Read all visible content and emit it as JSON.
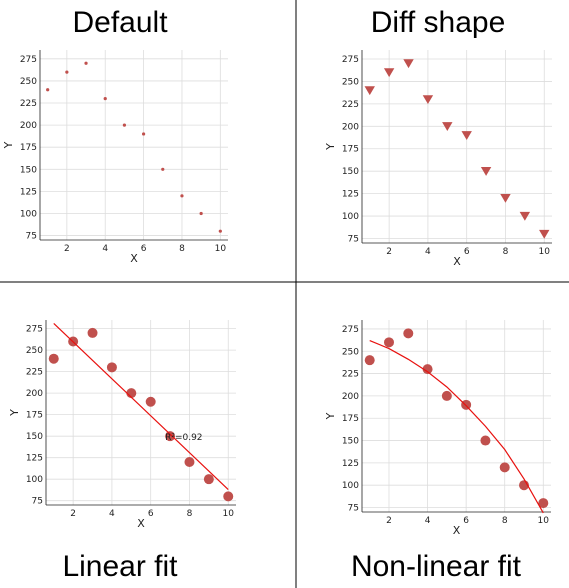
{
  "colors": {
    "marker": "#c0504d",
    "fit_line": "#e8110f",
    "grid": "#dddddd",
    "axis": "#222222",
    "divider": "#000000"
  },
  "chart_data": [
    {
      "id": "default",
      "type": "scatter",
      "title": "Default",
      "xlabel": "X",
      "ylabel": "Y",
      "marker": "small-circle",
      "grid": true,
      "xlim": [
        0.6,
        10.4
      ],
      "ylim": [
        70,
        285
      ],
      "xticks": [
        2,
        4,
        6,
        8,
        10
      ],
      "yticks": [
        75,
        100,
        125,
        150,
        175,
        200,
        225,
        250,
        275
      ],
      "x": [
        1,
        2,
        3,
        4,
        5,
        6,
        7,
        8,
        9,
        10
      ],
      "y": [
        240,
        260,
        270,
        230,
        200,
        190,
        150,
        120,
        100,
        80
      ]
    },
    {
      "id": "diff-shape",
      "type": "scatter",
      "title": "Diff shape",
      "xlabel": "X",
      "ylabel": "Y",
      "marker": "triangle-down",
      "grid": true,
      "xlim": [
        0.6,
        10.4
      ],
      "ylim": [
        70,
        285
      ],
      "xticks": [
        2,
        4,
        6,
        8,
        10
      ],
      "yticks": [
        75,
        100,
        125,
        150,
        175,
        200,
        225,
        250,
        275
      ],
      "x": [
        1,
        2,
        3,
        4,
        5,
        6,
        7,
        8,
        9,
        10
      ],
      "y": [
        240,
        260,
        270,
        230,
        200,
        190,
        150,
        120,
        100,
        80
      ]
    },
    {
      "id": "linear-fit",
      "type": "scatter",
      "title": "Linear fit",
      "xlabel": "X",
      "ylabel": "Y",
      "marker": "large-circle",
      "grid": true,
      "xlim": [
        0.6,
        10.4
      ],
      "ylim": [
        70,
        285
      ],
      "xticks": [
        2,
        4,
        6,
        8,
        10
      ],
      "yticks": [
        75,
        100,
        125,
        150,
        175,
        200,
        225,
        250,
        275
      ],
      "x": [
        1,
        2,
        3,
        4,
        5,
        6,
        7,
        8,
        9,
        10
      ],
      "y": [
        240,
        260,
        270,
        230,
        200,
        190,
        150,
        120,
        100,
        80
      ],
      "fit": {
        "kind": "linear",
        "x_range": [
          1,
          10
        ],
        "y_at_start": 281,
        "y_at_end": 88
      },
      "annotation": {
        "text": "R²=0.92",
        "x": 7,
        "y": 150
      }
    },
    {
      "id": "non-linear-fit",
      "type": "scatter",
      "title": "Non-linear fit",
      "xlabel": "X",
      "ylabel": "Y",
      "marker": "large-circle",
      "grid": true,
      "xlim": [
        0.6,
        10.4
      ],
      "ylim": [
        70,
        285
      ],
      "xticks": [
        2,
        4,
        6,
        8,
        10
      ],
      "yticks": [
        75,
        100,
        125,
        150,
        175,
        200,
        225,
        250,
        275
      ],
      "x": [
        1,
        2,
        3,
        4,
        5,
        6,
        7,
        8,
        9,
        10
      ],
      "y": [
        240,
        260,
        270,
        230,
        200,
        190,
        150,
        120,
        100,
        80
      ],
      "fit": {
        "kind": "curve",
        "x": [
          1,
          2,
          3,
          4,
          5,
          6,
          7,
          8,
          9,
          10
        ],
        "y": [
          262,
          253,
          241,
          227,
          210,
          189,
          166,
          140,
          107,
          69
        ]
      }
    }
  ]
}
